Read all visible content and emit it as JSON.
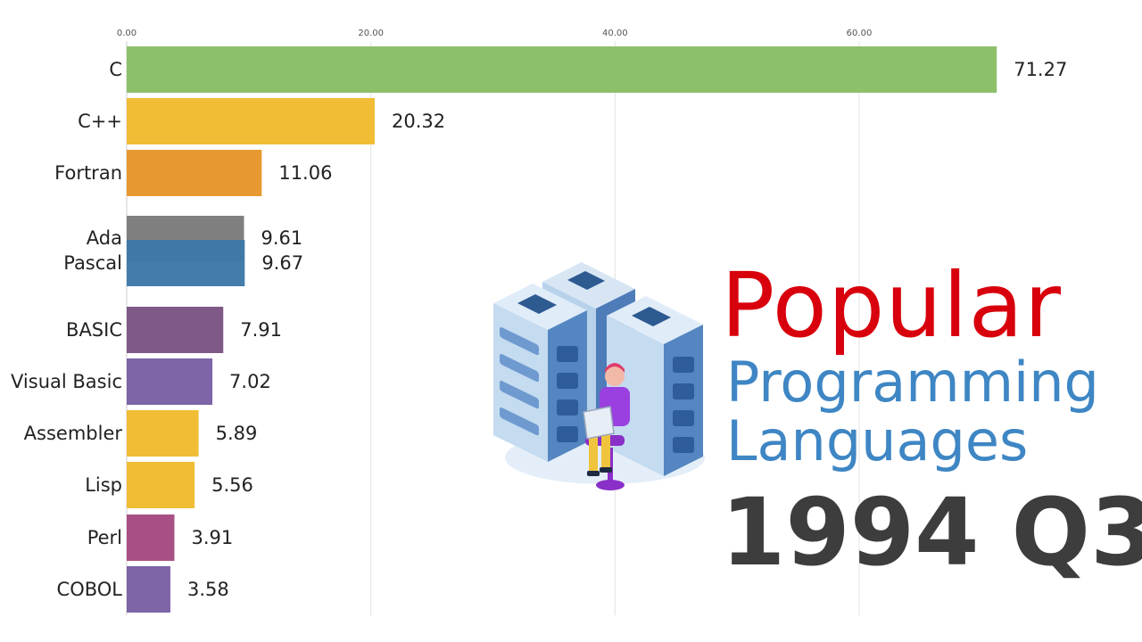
{
  "title": {
    "line1": "Popular",
    "line2": "Programming",
    "line3": "Languages",
    "period": "1994 Q3"
  },
  "colors": {
    "title_red": "#d8000c",
    "title_blue": "#3e86c4",
    "period_gray": "#3d3d3d"
  },
  "chart_data": {
    "type": "bar",
    "orientation": "horizontal",
    "categories": [
      "C",
      "C++",
      "Fortran",
      "Ada",
      "Pascal",
      "BASIC",
      "Visual Basic",
      "Assembler",
      "Lisp",
      "Perl",
      "COBOL"
    ],
    "values": [
      71.27,
      20.32,
      11.06,
      9.61,
      9.67,
      7.91,
      7.02,
      5.89,
      5.56,
      3.91,
      3.58
    ],
    "value_labels": [
      "71.27",
      "20.32",
      "11.06",
      "9.61",
      "9.67",
      "7.91",
      "7.02",
      "5.89",
      "5.56",
      "3.91",
      "3.58"
    ],
    "colors": [
      "#8cc06b",
      "#f0bd35",
      "#e89830",
      "#7f7f7f",
      "#3e79a8",
      "#7f5a86",
      "#7d65a8",
      "#f0bd35",
      "#f0bd35",
      "#a85086",
      "#7d65a8"
    ],
    "xticks": [
      "0.00",
      "20.00",
      "40.00",
      "60.00"
    ],
    "xtick_values": [
      0,
      20,
      40,
      60
    ],
    "xlim": [
      0,
      80
    ],
    "grid": true,
    "title": "",
    "xlabel": "",
    "ylabel": ""
  }
}
